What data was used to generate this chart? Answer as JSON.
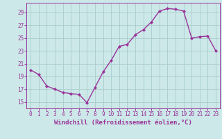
{
  "x": [
    0,
    1,
    2,
    3,
    4,
    5,
    6,
    7,
    8,
    9,
    10,
    11,
    12,
    13,
    14,
    15,
    16,
    17,
    18,
    19,
    20,
    21,
    22,
    23
  ],
  "y": [
    20.0,
    19.3,
    17.5,
    17.0,
    16.5,
    16.3,
    16.2,
    14.9,
    17.3,
    19.7,
    21.5,
    23.7,
    24.0,
    25.5,
    26.3,
    27.5,
    29.2,
    29.6,
    29.5,
    29.2,
    25.0,
    25.2,
    25.3,
    23.0
  ],
  "line_color": "#993399",
  "marker": "D",
  "marker_size": 2.0,
  "bg_color": "#cce8e8",
  "grid_color": "#aacccc",
  "xlabel": "Windchill (Refroidissement éolien,°C)",
  "xlim": [
    -0.5,
    23.5
  ],
  "ylim": [
    14.0,
    30.5
  ],
  "yticks": [
    15,
    17,
    19,
    21,
    23,
    25,
    27,
    29
  ],
  "xticks": [
    0,
    1,
    2,
    3,
    4,
    5,
    6,
    7,
    8,
    9,
    10,
    11,
    12,
    13,
    14,
    15,
    16,
    17,
    18,
    19,
    20,
    21,
    22,
    23
  ],
  "tick_color": "#993399",
  "tick_fontsize": 5.5,
  "xlabel_fontsize": 6.5,
  "axis_color": "#993399",
  "linewidth": 1.0
}
